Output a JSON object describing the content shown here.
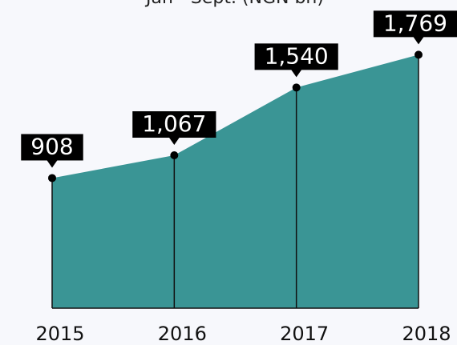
{
  "chart_data": {
    "type": "area",
    "title": "Jan - Sept. (NGN bn)",
    "categories": [
      "2015",
      "2016",
      "2017",
      "2018"
    ],
    "values": [
      908,
      1067,
      1540,
      1769
    ],
    "value_labels": [
      "908",
      "1,067",
      "1,540",
      "1,769"
    ],
    "color": "#3a9595",
    "ylim": [
      0,
      2000
    ]
  }
}
